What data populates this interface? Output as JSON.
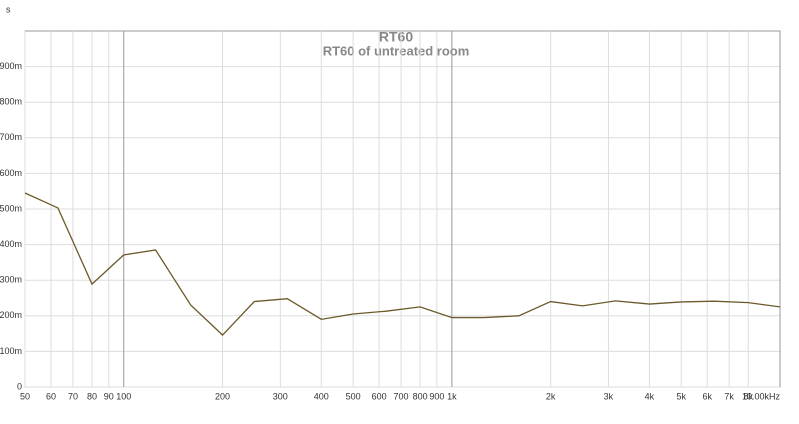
{
  "chart_data": {
    "type": "line",
    "title": "RT60",
    "subtitle": "RT60 of untreated room",
    "y_label": "s",
    "x": [
      50,
      63,
      80,
      100,
      125,
      160,
      200,
      250,
      315,
      400,
      500,
      630,
      800,
      1000,
      1250,
      1600,
      2000,
      2500,
      3150,
      4000,
      5000,
      6300,
      8000,
      10000
    ],
    "series": [
      {
        "name": "RT60",
        "color": "#6b5a2a",
        "values": [
          0.545,
          0.503,
          0.289,
          0.371,
          0.385,
          0.23,
          0.146,
          0.24,
          0.248,
          0.19,
          0.205,
          0.213,
          0.225,
          0.195,
          0.195,
          0.2,
          0.24,
          0.228,
          0.242,
          0.233,
          0.239,
          0.241,
          0.237,
          0.225
        ]
      }
    ],
    "xscale": "log",
    "xlim": [
      50,
      10000
    ],
    "ylim": [
      0,
      1
    ],
    "grid": true,
    "xticks": [
      50,
      60,
      70,
      80,
      90,
      100,
      200,
      300,
      400,
      500,
      600,
      700,
      800,
      900,
      {
        "value": 1000,
        "label": "1k"
      },
      {
        "value": 2000,
        "label": "2k"
      },
      {
        "value": 3000,
        "label": "3k"
      },
      {
        "value": 4000,
        "label": "4k"
      },
      {
        "value": 5000,
        "label": "5k"
      },
      {
        "value": 6000,
        "label": "6k"
      },
      {
        "value": 7000,
        "label": "7k"
      },
      {
        "value": 8000,
        "label": "8k"
      },
      {
        "value": 10000,
        "label": "10.00kHz"
      }
    ],
    "yticks": [
      0,
      {
        "value": 0.1,
        "label": "100m"
      },
      {
        "value": 0.2,
        "label": "200m"
      },
      {
        "value": 0.3,
        "label": "300m"
      },
      {
        "value": 0.4,
        "label": "400m"
      },
      {
        "value": 0.5,
        "label": "500m"
      },
      {
        "value": 0.6,
        "label": "600m"
      },
      {
        "value": 0.7,
        "label": "700m"
      },
      {
        "value": 0.8,
        "label": "800m"
      },
      {
        "value": 0.9,
        "label": "900m"
      }
    ]
  }
}
